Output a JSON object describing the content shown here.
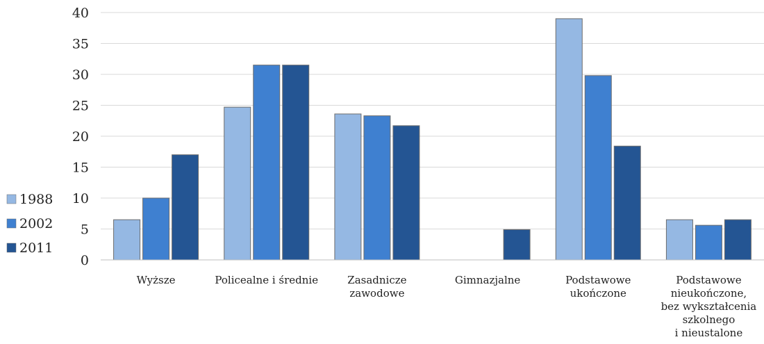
{
  "chart_data": {
    "type": "bar",
    "categories": [
      [
        "Wyższe"
      ],
      [
        "Policealne i średnie"
      ],
      [
        "Zasadnicze",
        "zawodowe"
      ],
      [
        "Gimnazjalne"
      ],
      [
        "Podstawowe",
        "ukończone"
      ],
      [
        "Podstawowe",
        "nieukończone,",
        "bez wykształcenia",
        "szkolnego",
        "i nieustalone"
      ]
    ],
    "series": [
      {
        "name": "1988",
        "values": [
          6.5,
          24.7,
          23.6,
          null,
          39.0,
          6.5
        ],
        "color": "#95b8e3"
      },
      {
        "name": "2002",
        "values": [
          10.0,
          31.5,
          23.3,
          null,
          29.8,
          5.6
        ],
        "color": "#3f80d0"
      },
      {
        "name": "2011",
        "values": [
          17.0,
          31.5,
          21.7,
          4.9,
          18.4,
          6.5
        ],
        "color": "#245593"
      }
    ],
    "ylim": [
      0,
      40
    ],
    "yticks": [
      "0",
      "5",
      "10",
      "15",
      "20",
      "25",
      "30",
      "35",
      "40"
    ],
    "grid": true,
    "legend_position": "left",
    "title": "",
    "xlabel": "",
    "ylabel": ""
  }
}
